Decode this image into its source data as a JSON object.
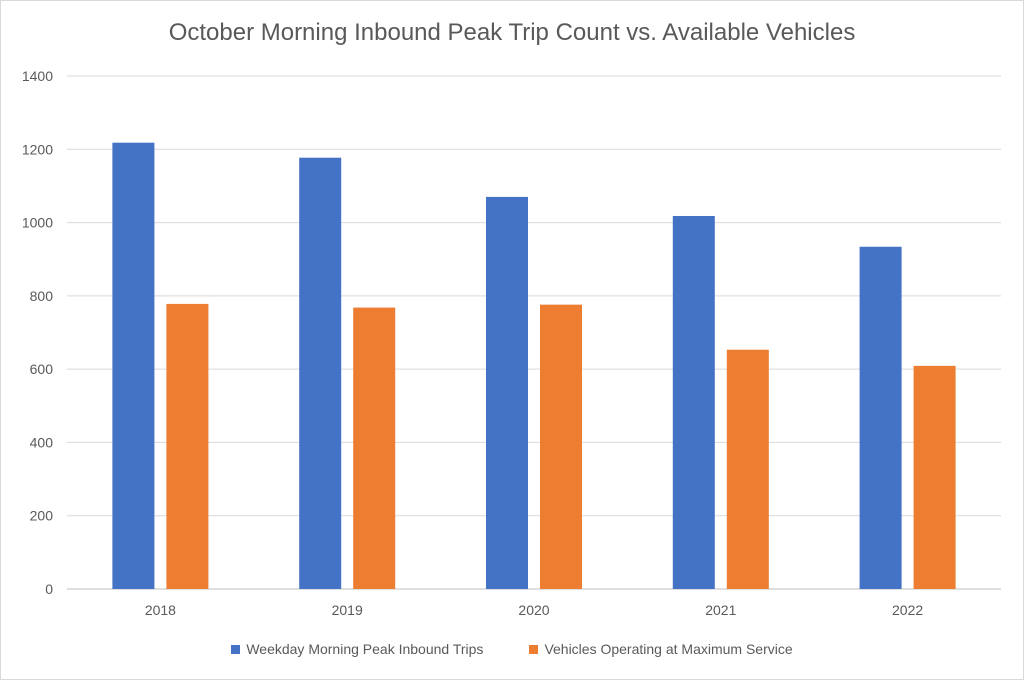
{
  "chart_data": {
    "type": "bar",
    "title": "October Morning Inbound Peak Trip Count vs. Available Vehicles",
    "categories": [
      "2018",
      "2019",
      "2020",
      "2021",
      "2022"
    ],
    "series": [
      {
        "name": "Weekday Morning Peak Inbound Trips",
        "color": "#4472c4",
        "values": [
          1218,
          1177,
          1070,
          1018,
          934
        ]
      },
      {
        "name": "Vehicles Operating at Maximum Service",
        "color": "#ed7d31",
        "values": [
          778,
          768,
          776,
          653,
          609
        ]
      }
    ],
    "ylim": [
      0,
      1400
    ],
    "yticks": [
      "0",
      "200",
      "400",
      "600",
      "800",
      "1000",
      "1200",
      "1400"
    ],
    "grid": true,
    "legend_position": "bottom"
  }
}
